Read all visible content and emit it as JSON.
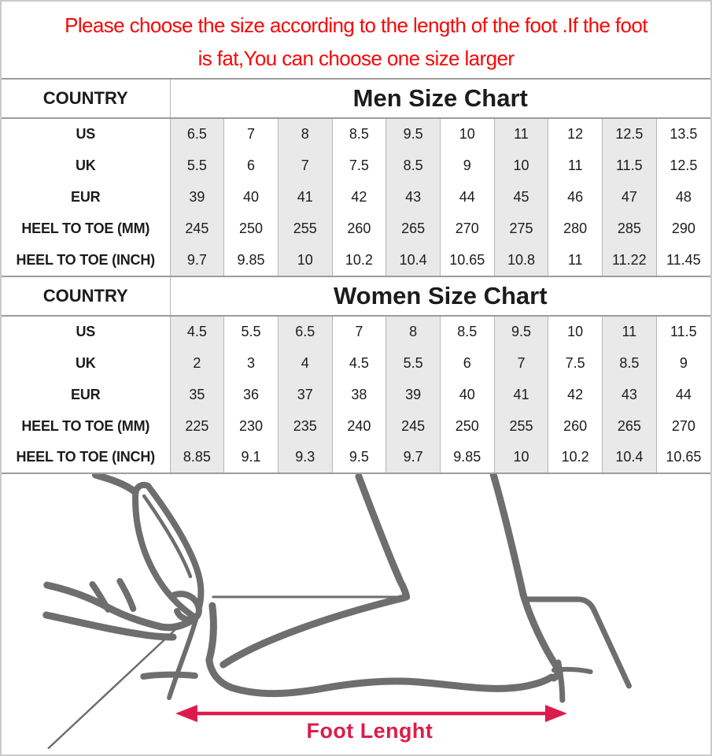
{
  "notice": {
    "line1": "Please choose the size according to the length of the foot .If the foot",
    "line2": "is fat,You can choose one size larger"
  },
  "tables": [
    {
      "corner_label": "COUNTRY",
      "title": "Men Size Chart",
      "shaded_columns": [
        0,
        2,
        4,
        6,
        8
      ],
      "rows": [
        {
          "label": "US",
          "values": [
            "6.5",
            "7",
            "8",
            "8.5",
            "9.5",
            "10",
            "11",
            "12",
            "12.5",
            "13.5"
          ]
        },
        {
          "label": "UK",
          "values": [
            "5.5",
            "6",
            "7",
            "7.5",
            "8.5",
            "9",
            "10",
            "11",
            "11.5",
            "12.5"
          ]
        },
        {
          "label": "EUR",
          "values": [
            "39",
            "40",
            "41",
            "42",
            "43",
            "44",
            "45",
            "46",
            "47",
            "48"
          ]
        },
        {
          "label": "HEEL TO TOE (MM)",
          "values": [
            "245",
            "250",
            "255",
            "260",
            "265",
            "270",
            "275",
            "280",
            "285",
            "290"
          ]
        },
        {
          "label": "HEEL TO TOE (INCH)",
          "values": [
            "9.7",
            "9.85",
            "10",
            "10.2",
            "10.4",
            "10.65",
            "10.8",
            "11",
            "11.22",
            "11.45"
          ]
        }
      ]
    },
    {
      "corner_label": "COUNTRY",
      "title": "Women Size Chart",
      "shaded_columns": [
        0,
        2,
        4,
        6,
        8
      ],
      "rows": [
        {
          "label": "US",
          "values": [
            "4.5",
            "5.5",
            "6.5",
            "7",
            "8",
            "8.5",
            "9.5",
            "10",
            "11",
            "11.5"
          ]
        },
        {
          "label": "UK",
          "values": [
            "2",
            "3",
            "4",
            "4.5",
            "5.5",
            "6",
            "7",
            "7.5",
            "8.5",
            "9"
          ]
        },
        {
          "label": "EUR",
          "values": [
            "35",
            "36",
            "37",
            "38",
            "39",
            "40",
            "41",
            "42",
            "43",
            "44"
          ]
        },
        {
          "label": "HEEL TO TOE (MM)",
          "values": [
            "225",
            "230",
            "235",
            "240",
            "245",
            "250",
            "255",
            "260",
            "265",
            "270"
          ]
        },
        {
          "label": "HEEL TO TOE (INCH)",
          "values": [
            "8.85",
            "9.1",
            "9.3",
            "9.5",
            "9.7",
            "9.85",
            "10",
            "10.2",
            "10.4",
            "10.65"
          ]
        }
      ]
    }
  ],
  "diagram": {
    "caption": "Foot Lenght"
  },
  "colors": {
    "notice_red": "#fa0606",
    "accent_crimson": "#dd1b4b",
    "cell_shade": "#e9e9e9",
    "table_line": "#9d9d9d",
    "column_line": "#b6b6b6",
    "sketch_gray": "#6e6e6e",
    "frame": "#cbcbcb"
  }
}
